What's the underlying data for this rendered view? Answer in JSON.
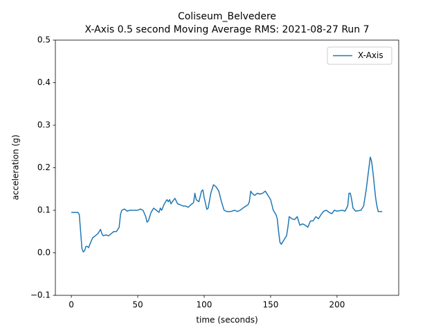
{
  "chart_data": {
    "type": "line",
    "title": "Coliseum_Belvedere",
    "subtitle": "X-Axis 0.5 second Moving Average RMS: 2021-08-27 Run 7",
    "x_label": "time (seconds)",
    "y_label": "acceleration (g)",
    "legend": "upper right",
    "xlim": [
      -12,
      246.4
    ],
    "ylim": [
      -0.1,
      0.5
    ],
    "xticks": [
      0,
      50,
      100,
      150,
      200
    ],
    "yticks": [
      {
        "value": -0.1,
        "label": "−0.1"
      },
      {
        "value": 0,
        "label": "0.0"
      },
      0.1,
      0.2,
      0.3,
      0.4,
      0.5
    ],
    "x": [
      0,
      5,
      6,
      7,
      8,
      9,
      10,
      11,
      12,
      13,
      14,
      16,
      18,
      20,
      22,
      23,
      24,
      26,
      28,
      30,
      32,
      34,
      36,
      37,
      38,
      40,
      42,
      44,
      46,
      48,
      50,
      52,
      54,
      56,
      57,
      58,
      60,
      62,
      64,
      66,
      67,
      68,
      70,
      72,
      73,
      74,
      75,
      76,
      78,
      80,
      82,
      84,
      86,
      88,
      90,
      92,
      93,
      94,
      96,
      98,
      99,
      100,
      102,
      103,
      105,
      107,
      109,
      111,
      113,
      115,
      117,
      120,
      123,
      125,
      127,
      130,
      133,
      134,
      135,
      136,
      138,
      140,
      142,
      144,
      146,
      148,
      150,
      152,
      154,
      155,
      156,
      157,
      158,
      160,
      162,
      163,
      164,
      166,
      168,
      170,
      171,
      172,
      174,
      176,
      178,
      180,
      182,
      184,
      186,
      188,
      190,
      192,
      194,
      196,
      198,
      200,
      204,
      206,
      208,
      209,
      210,
      211,
      212,
      214,
      218,
      220,
      222,
      224,
      225,
      226,
      227,
      229,
      230,
      231,
      234
    ],
    "series": [
      {
        "name": "X-Axis",
        "color": "#1f77b4",
        "values": [
          0.095,
          0.095,
          0.09,
          0.05,
          0.01,
          0.002,
          0.005,
          0.015,
          0.015,
          0.012,
          0.02,
          0.035,
          0.04,
          0.045,
          0.055,
          0.045,
          0.04,
          0.042,
          0.04,
          0.045,
          0.05,
          0.05,
          0.06,
          0.09,
          0.1,
          0.103,
          0.098,
          0.1,
          0.1,
          0.1,
          0.1,
          0.103,
          0.1,
          0.085,
          0.072,
          0.075,
          0.095,
          0.105,
          0.1,
          0.095,
          0.105,
          0.1,
          0.115,
          0.125,
          0.12,
          0.125,
          0.115,
          0.12,
          0.128,
          0.115,
          0.113,
          0.11,
          0.11,
          0.107,
          0.113,
          0.118,
          0.14,
          0.125,
          0.12,
          0.145,
          0.148,
          0.13,
          0.102,
          0.105,
          0.14,
          0.16,
          0.155,
          0.145,
          0.12,
          0.1,
          0.097,
          0.097,
          0.1,
          0.097,
          0.1,
          0.107,
          0.113,
          0.12,
          0.145,
          0.14,
          0.135,
          0.14,
          0.138,
          0.14,
          0.145,
          0.135,
          0.125,
          0.1,
          0.09,
          0.08,
          0.05,
          0.025,
          0.02,
          0.03,
          0.04,
          0.06,
          0.085,
          0.08,
          0.078,
          0.085,
          0.075,
          0.065,
          0.068,
          0.065,
          0.06,
          0.075,
          0.075,
          0.085,
          0.08,
          0.09,
          0.098,
          0.1,
          0.095,
          0.092,
          0.1,
          0.098,
          0.1,
          0.098,
          0.11,
          0.14,
          0.14,
          0.125,
          0.105,
          0.098,
          0.1,
          0.11,
          0.15,
          0.2,
          0.225,
          0.215,
          0.19,
          0.13,
          0.11,
          0.097,
          0.097
        ]
      }
    ]
  }
}
